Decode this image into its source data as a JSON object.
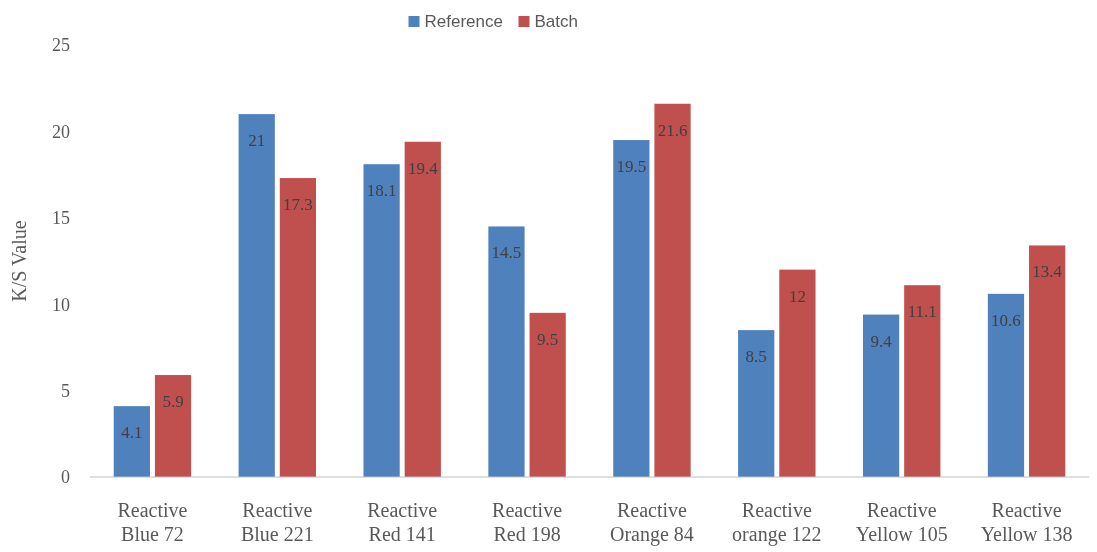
{
  "chart_data": {
    "type": "bar",
    "ylabel": "K/S Value",
    "categories": [
      "Reactive Blue 72",
      "Reactive Blue 221",
      "Reactive Red 141",
      "Reactive Red 198",
      "Reactive Orange 84",
      "Reactive orange 122",
      "Reactive Yellow 105",
      "Reactive Yellow 138"
    ],
    "series": [
      {
        "name": "Reference",
        "color": "#4f81bd",
        "values": [
          4.1,
          21,
          18.1,
          14.5,
          19.5,
          8.5,
          9.4,
          10.6
        ]
      },
      {
        "name": "Batch",
        "color": "#c0504d",
        "values": [
          5.9,
          17.3,
          19.4,
          9.5,
          21.6,
          12,
          11.1,
          13.4
        ]
      }
    ],
    "ylim": [
      0,
      25
    ],
    "yticks": [
      0,
      5,
      10,
      15,
      20,
      25
    ],
    "data_labels": true,
    "legend": "top",
    "grid": false
  }
}
